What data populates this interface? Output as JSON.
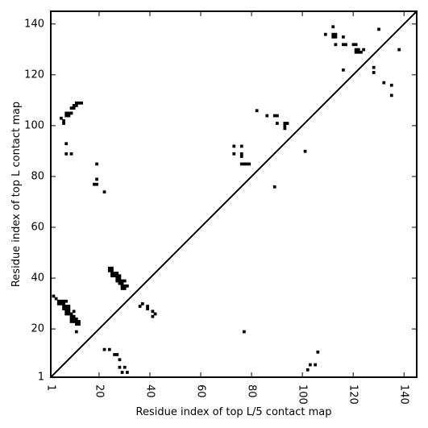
{
  "chart_data": {
    "type": "scatter",
    "title": "",
    "xlabel": "Residue index of top L/5 contact map",
    "ylabel": "Residue index of top L contact map",
    "xlim": [
      1,
      145
    ],
    "ylim": [
      1,
      145
    ],
    "xticks": [
      1,
      20,
      40,
      60,
      80,
      100,
      120,
      140
    ],
    "yticks": [
      1,
      20,
      40,
      60,
      80,
      100,
      120,
      140
    ],
    "xtick_labels": [
      "1",
      "20",
      "40",
      "60",
      "80",
      "100",
      "120",
      "140"
    ],
    "ytick_labels": [
      "1",
      "20",
      "40",
      "60",
      "80",
      "100",
      "120",
      "140"
    ],
    "xtick_rotation": 90,
    "grid": false,
    "diagonal": {
      "from": [
        1,
        1
      ],
      "to": [
        145,
        145
      ]
    },
    "marker_color": "#000000",
    "series": [
      {
        "points": [
          [
            5,
            103
          ],
          [
            6,
            102
          ],
          [
            6,
            101
          ],
          [
            7,
            105
          ],
          [
            7,
            104
          ],
          [
            8,
            104
          ],
          [
            8,
            105
          ],
          [
            9,
            105
          ],
          [
            9,
            107
          ],
          [
            10,
            108
          ],
          [
            10,
            107
          ],
          [
            11,
            109
          ],
          [
            11,
            108
          ],
          [
            12,
            109
          ],
          [
            13,
            109
          ],
          [
            7,
            93
          ],
          [
            7,
            89
          ],
          [
            9,
            89
          ],
          [
            19,
            85
          ],
          [
            18,
            77
          ],
          [
            19,
            77
          ],
          [
            19,
            79
          ],
          [
            22,
            74
          ],
          [
            73,
            92
          ],
          [
            76,
            92
          ],
          [
            73,
            89
          ],
          [
            76,
            89
          ],
          [
            76,
            88
          ],
          [
            76,
            85
          ],
          [
            77,
            85
          ],
          [
            78,
            85
          ],
          [
            79,
            85
          ],
          [
            82,
            106
          ],
          [
            86,
            104
          ],
          [
            89,
            104
          ],
          [
            90,
            104
          ],
          [
            90,
            101
          ],
          [
            93,
            101
          ],
          [
            94,
            101
          ],
          [
            93,
            100
          ],
          [
            93,
            99
          ],
          [
            89,
            76
          ],
          [
            101,
            90
          ],
          [
            109,
            136
          ],
          [
            112,
            139
          ],
          [
            112,
            136
          ],
          [
            113,
            136
          ],
          [
            112,
            135
          ],
          [
            113,
            135
          ],
          [
            113,
            132
          ],
          [
            116,
            135
          ],
          [
            116,
            132
          ],
          [
            117,
            132
          ],
          [
            116,
            122
          ],
          [
            120,
            132
          ],
          [
            121,
            132
          ],
          [
            121,
            130
          ],
          [
            122,
            130
          ],
          [
            121,
            129
          ],
          [
            122,
            129
          ],
          [
            123,
            129
          ],
          [
            124,
            130
          ],
          [
            128,
            123
          ],
          [
            128,
            121
          ],
          [
            130,
            138
          ],
          [
            132,
            117
          ],
          [
            135,
            116
          ],
          [
            135,
            112
          ],
          [
            138,
            130
          ]
        ]
      },
      {
        "points": [
          [
            2,
            33
          ],
          [
            3,
            32
          ],
          [
            4,
            31
          ],
          [
            4,
            30
          ],
          [
            5,
            31
          ],
          [
            5,
            30
          ],
          [
            6,
            31
          ],
          [
            6,
            30
          ],
          [
            7,
            31
          ],
          [
            6,
            29
          ],
          [
            7,
            29
          ],
          [
            6,
            28
          ],
          [
            7,
            28
          ],
          [
            8,
            29
          ],
          [
            8,
            28
          ],
          [
            7,
            27
          ],
          [
            8,
            27
          ],
          [
            7,
            26
          ],
          [
            8,
            26
          ],
          [
            9,
            26
          ],
          [
            10,
            27
          ],
          [
            9,
            25
          ],
          [
            10,
            25
          ],
          [
            9,
            24
          ],
          [
            10,
            24
          ],
          [
            9,
            23
          ],
          [
            10,
            23
          ],
          [
            11,
            24
          ],
          [
            11,
            23
          ],
          [
            11,
            22
          ],
          [
            12,
            23
          ],
          [
            12,
            22
          ],
          [
            11,
            19
          ],
          [
            24,
            44
          ],
          [
            25,
            44
          ],
          [
            24,
            43
          ],
          [
            25,
            43
          ],
          [
            25,
            42
          ],
          [
            26,
            42
          ],
          [
            27,
            42
          ],
          [
            25,
            41
          ],
          [
            26,
            41
          ],
          [
            27,
            41
          ],
          [
            28,
            41
          ],
          [
            27,
            40
          ],
          [
            28,
            40
          ],
          [
            27,
            39
          ],
          [
            28,
            39
          ],
          [
            29,
            39
          ],
          [
            30,
            39
          ],
          [
            28,
            38
          ],
          [
            29,
            38
          ],
          [
            29,
            37
          ],
          [
            30,
            37
          ],
          [
            31,
            37
          ],
          [
            29,
            36
          ],
          [
            30,
            36
          ],
          [
            36,
            29
          ],
          [
            37,
            30
          ],
          [
            39,
            29
          ],
          [
            39,
            28
          ],
          [
            41,
            27
          ],
          [
            42,
            26
          ],
          [
            41,
            25
          ],
          [
            22,
            12
          ],
          [
            24,
            12
          ],
          [
            26,
            10
          ],
          [
            27,
            10
          ],
          [
            28,
            8
          ],
          [
            28,
            5
          ],
          [
            30,
            5
          ],
          [
            29,
            3
          ],
          [
            31,
            3
          ],
          [
            77,
            19
          ],
          [
            102,
            4
          ],
          [
            103,
            6
          ],
          [
            105,
            6
          ],
          [
            106,
            11
          ]
        ]
      }
    ]
  }
}
